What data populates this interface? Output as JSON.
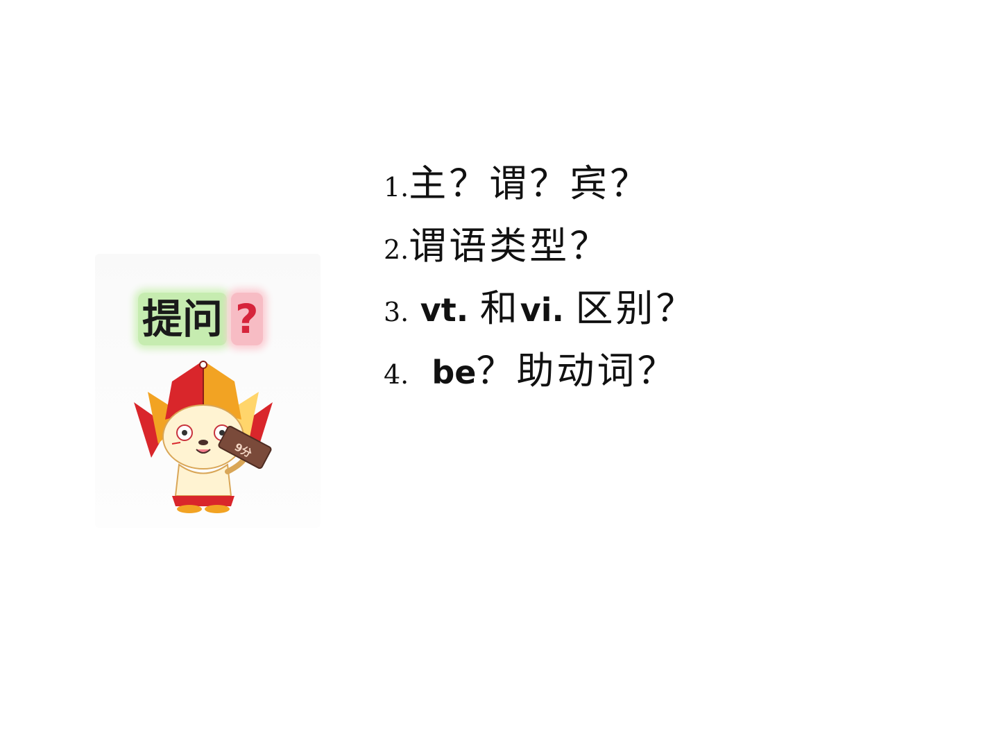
{
  "slide": {
    "ask_label": {
      "text": "提问",
      "mark": "?"
    },
    "mascot": {
      "sign_text": "9分",
      "colors": {
        "red": "#d9262b",
        "orange": "#f2a323",
        "yellow": "#ffd56b",
        "face": "#fff3d2",
        "sign": "#7a4a3a"
      }
    },
    "questions": [
      {
        "num": "1.",
        "parts": [
          "主？谓？宾？"
        ]
      },
      {
        "num": "2.",
        "parts": [
          "谓语类型？"
        ]
      },
      {
        "num": "3.",
        "en1": "vt.",
        "cn1": "和",
        "en2": "vi.",
        "cn2": "区别？"
      },
      {
        "num": "4.",
        "en1": "be",
        "cn1": "？助动词？"
      }
    ]
  }
}
